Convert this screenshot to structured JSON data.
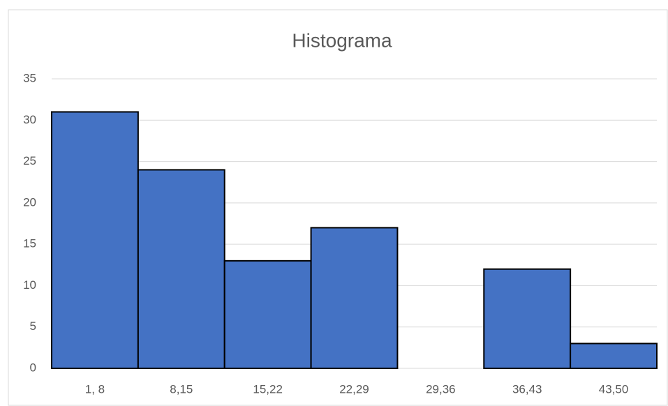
{
  "chart_data": {
    "type": "bar",
    "title": "Histograma",
    "categories": [
      "1, 8",
      "8,15",
      "15,22",
      "22,29",
      "29,36",
      "36,43",
      "43,50"
    ],
    "values": [
      31,
      24,
      13,
      17,
      0,
      12,
      3
    ],
    "color": "#4472c4",
    "ylim": [
      0,
      35
    ],
    "yticks": [
      0,
      5,
      10,
      15,
      20,
      25,
      30,
      35
    ],
    "grid": true
  }
}
